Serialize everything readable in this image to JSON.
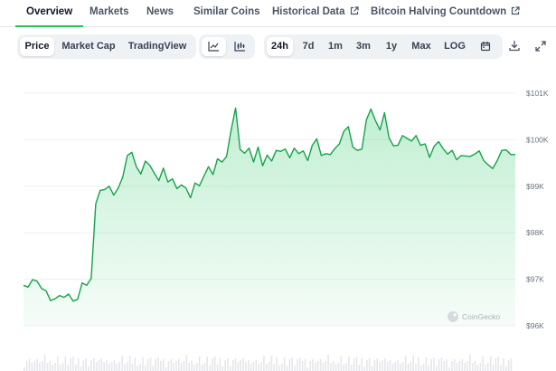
{
  "tabs": [
    {
      "label": "Overview",
      "active": true
    },
    {
      "label": "Markets"
    },
    {
      "label": "News"
    },
    {
      "label": "Similar Coins"
    },
    {
      "label": "Historical Data",
      "external": true
    },
    {
      "label": "Bitcoin Halving Countdown",
      "external": true
    }
  ],
  "toolbar": {
    "metric_tabs": [
      {
        "label": "Price",
        "selected": true
      },
      {
        "label": "Market Cap"
      },
      {
        "label": "TradingView"
      }
    ],
    "chart_style_icons": [
      "line-chart-icon",
      "candlestick-chart-icon"
    ],
    "ranges": [
      {
        "label": "24h",
        "selected": true
      },
      {
        "label": "7d"
      },
      {
        "label": "1m"
      },
      {
        "label": "3m"
      },
      {
        "label": "1y"
      },
      {
        "label": "Max"
      },
      {
        "label": "LOG"
      }
    ],
    "action_icons": [
      "calendar-icon",
      "download-icon",
      "expand-icon"
    ]
  },
  "watermark": "CoinGecko",
  "colors": {
    "line": "#16a34a",
    "accent": "#22c55e",
    "fill_top": "#22c55e"
  },
  "chart_data": {
    "type": "area",
    "period": "24h",
    "y_ticks": [
      "$101K",
      "$100K",
      "$99K",
      "$98K",
      "$97K",
      "$96K"
    ],
    "ylim": [
      96000,
      101000
    ],
    "grid": true,
    "x": [
      0,
      1,
      2,
      3,
      4,
      5,
      6,
      7,
      8,
      9,
      10,
      11,
      12,
      13,
      14,
      15,
      16,
      17,
      18,
      19,
      20,
      21,
      22,
      23,
      24,
      25,
      26,
      27,
      28,
      29,
      30,
      31,
      32,
      33,
      34,
      35,
      36,
      37,
      38,
      39,
      40,
      41,
      42,
      43,
      44,
      45,
      46,
      47,
      48,
      49,
      50,
      51,
      52,
      53,
      54,
      55,
      56,
      57,
      58,
      59,
      60,
      61,
      62,
      63,
      64,
      65,
      66,
      67,
      68,
      69,
      70,
      71,
      72,
      73,
      74,
      75,
      76,
      77,
      78,
      79,
      80,
      81,
      82,
      83,
      84,
      85,
      86,
      87,
      88,
      89,
      90,
      91,
      92,
      93,
      94,
      95,
      96,
      97,
      98,
      99,
      100,
      101,
      102,
      103,
      104,
      105,
      106,
      107,
      108,
      109
    ],
    "values": [
      96870,
      96830,
      96990,
      96960,
      96800,
      96750,
      96540,
      96580,
      96650,
      96610,
      96680,
      96530,
      96570,
      96920,
      96870,
      97020,
      98620,
      98910,
      98930,
      99000,
      98810,
      98960,
      99200,
      99660,
      99730,
      99420,
      99260,
      99540,
      99450,
      99280,
      99120,
      99390,
      99090,
      99160,
      98950,
      99030,
      98960,
      98750,
      99070,
      99010,
      99220,
      99420,
      99250,
      99590,
      99520,
      99640,
      100200,
      100680,
      99790,
      99710,
      99820,
      99520,
      99840,
      99440,
      99670,
      99540,
      99770,
      99750,
      99800,
      99610,
      99820,
      99700,
      99760,
      99550,
      99880,
      100020,
      99660,
      99700,
      99680,
      99810,
      99910,
      100180,
      100280,
      99840,
      99770,
      99800,
      100430,
      100660,
      100410,
      100210,
      100580,
      100040,
      99870,
      99880,
      100090,
      100030,
      99970,
      100090,
      99880,
      99910,
      99620,
      99860,
      99960,
      99810,
      99690,
      99770,
      99570,
      99660,
      99650,
      99640,
      99690,
      99760,
      99550,
      99460,
      99380,
      99550,
      99770,
      99780,
      99680,
      99680
    ]
  }
}
